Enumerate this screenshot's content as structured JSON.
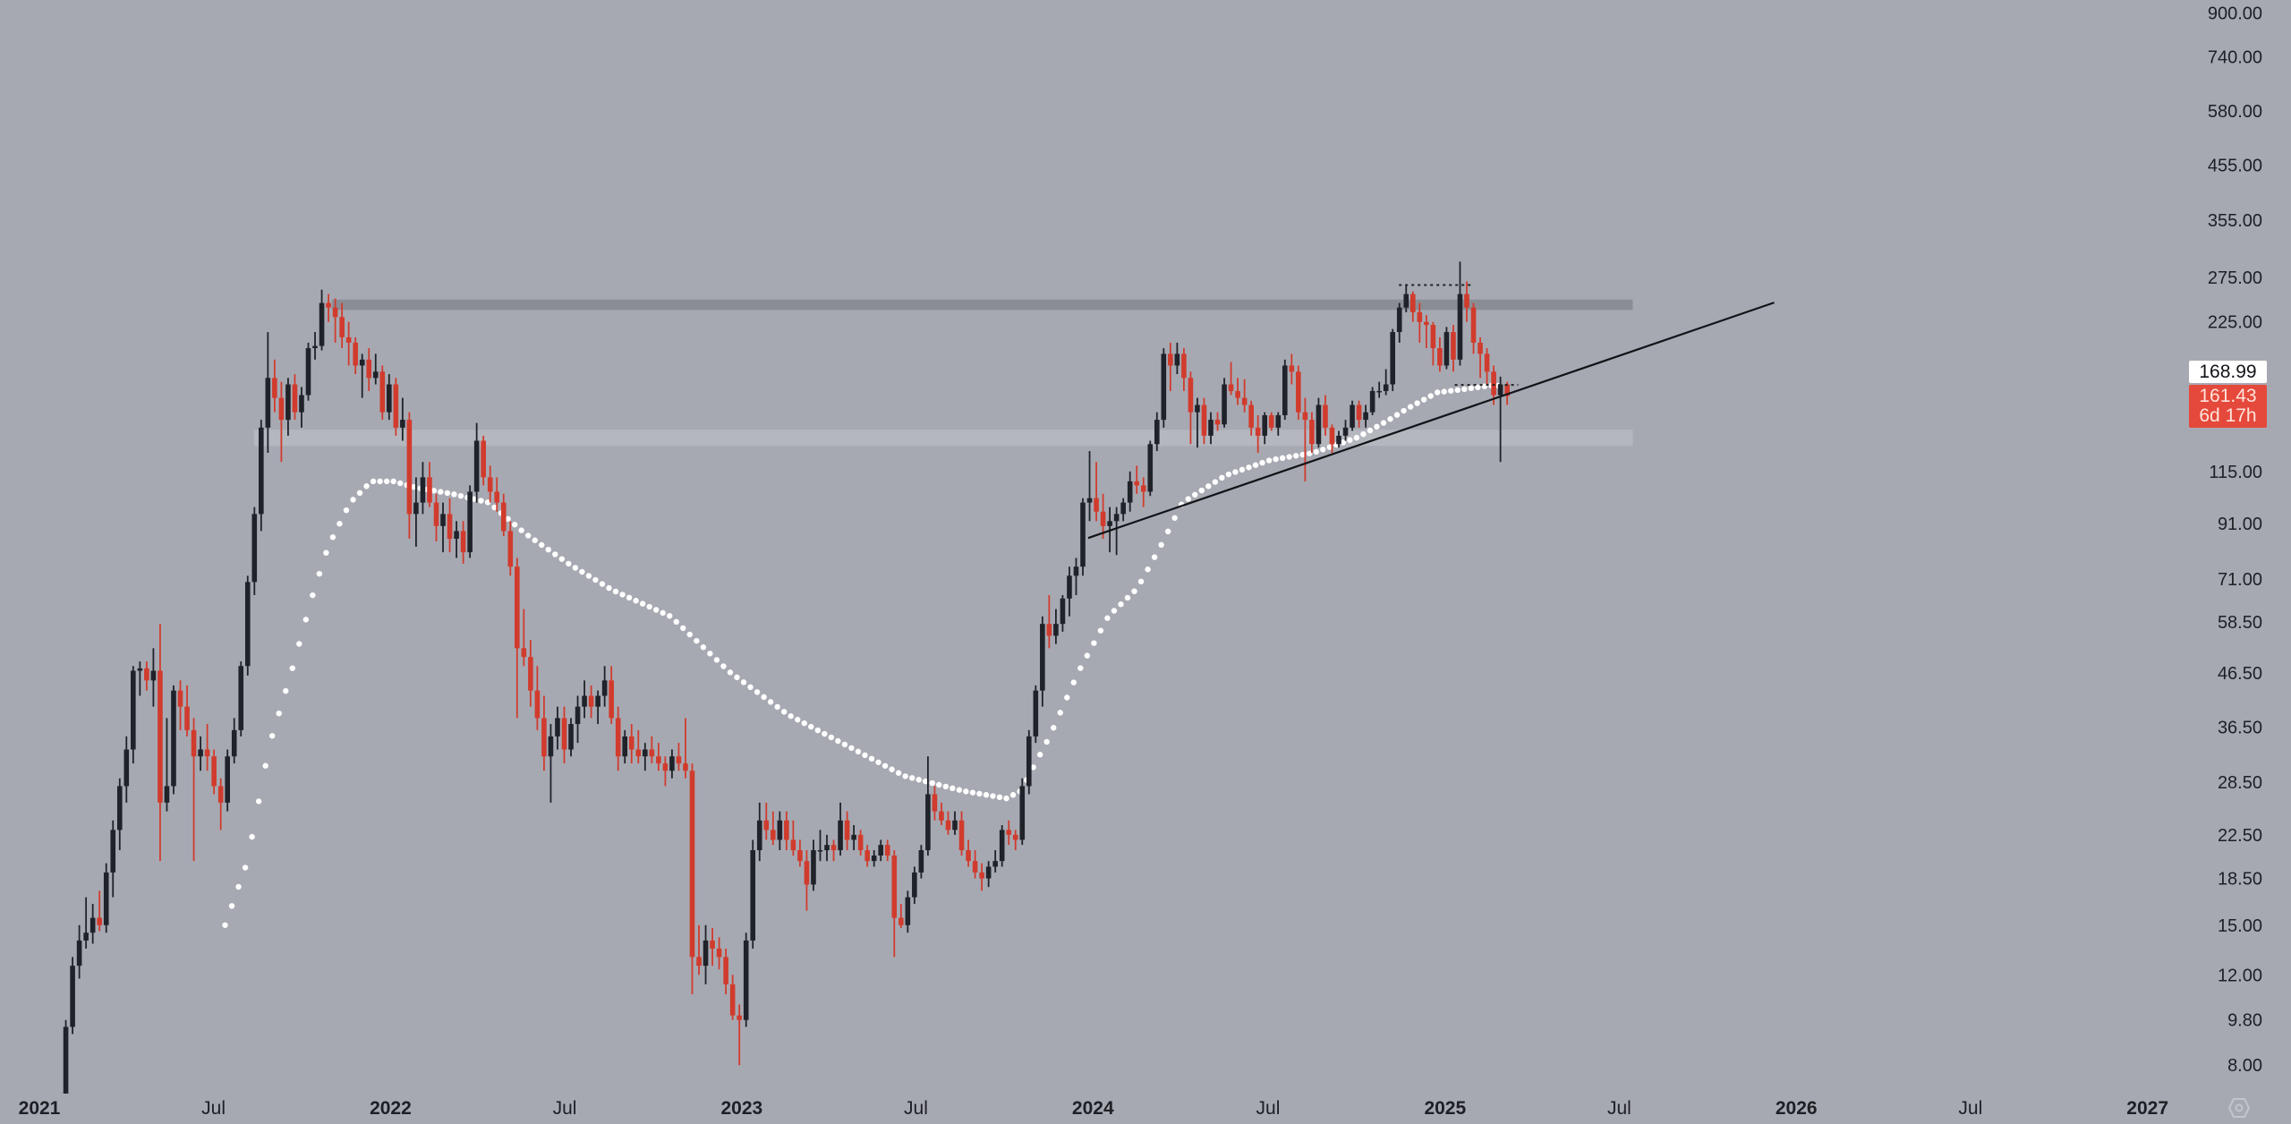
{
  "chart_data": {
    "type": "candlestick",
    "scale": "log",
    "interval": "1W",
    "first_candle": "2021-01-25",
    "ylim": [
      7.2,
      950
    ],
    "price_ticks": [
      "900.00",
      "740.00",
      "580.00",
      "455.00",
      "355.00",
      "275.00",
      "225.00",
      "115.00",
      "91.00",
      "71.00",
      "58.50",
      "46.50",
      "36.50",
      "28.50",
      "22.50",
      "18.50",
      "15.00",
      "12.00",
      "9.80",
      "8.00"
    ],
    "time_ticks": [
      {
        "date": "2021-01-01",
        "label": "2021",
        "year": true
      },
      {
        "date": "2021-07-01",
        "label": "Jul",
        "year": false
      },
      {
        "date": "2022-01-01",
        "label": "2022",
        "year": true
      },
      {
        "date": "2022-07-01",
        "label": "Jul",
        "year": false
      },
      {
        "date": "2023-01-01",
        "label": "2023",
        "year": true
      },
      {
        "date": "2023-07-01",
        "label": "Jul",
        "year": false
      },
      {
        "date": "2024-01-01",
        "label": "2024",
        "year": true
      },
      {
        "date": "2024-07-01",
        "label": "Jul",
        "year": false
      },
      {
        "date": "2025-01-01",
        "label": "2025",
        "year": true
      },
      {
        "date": "2025-07-01",
        "label": "Jul",
        "year": false
      },
      {
        "date": "2026-01-01",
        "label": "2026",
        "year": true
      },
      {
        "date": "2026-07-01",
        "label": "Jul",
        "year": false
      },
      {
        "date": "2027-01-01",
        "label": "2027",
        "year": true
      }
    ],
    "colors": {
      "background": "#a7a9b2",
      "up": "#1f2229",
      "down": "#d13b2d",
      "ma": "#ffffff",
      "trendline": "#111317",
      "resistance_band": "#8b8d94",
      "support_band": "#b5b7bf",
      "last_price": "#e5493b"
    },
    "candles_ohlc": [
      [
        6.8,
        9.8,
        6.5,
        9.5
      ],
      [
        9.5,
        13,
        9.2,
        12.5
      ],
      [
        12.5,
        15,
        11.8,
        14
      ],
      [
        14,
        17,
        13.5,
        14.5
      ],
      [
        14.5,
        16.5,
        13.8,
        15.5
      ],
      [
        15.5,
        17.5,
        14.6,
        15
      ],
      [
        15,
        19.8,
        14.5,
        19
      ],
      [
        19,
        24,
        17,
        23
      ],
      [
        23,
        29,
        21,
        28
      ],
      [
        28,
        35,
        26,
        33
      ],
      [
        33,
        48,
        31,
        47
      ],
      [
        47,
        49,
        42,
        47.5
      ],
      [
        47.5,
        49,
        43,
        45
      ],
      [
        45,
        52,
        40,
        47
      ],
      [
        47,
        58,
        20,
        26
      ],
      [
        26,
        38,
        25,
        28
      ],
      [
        28,
        44,
        27,
        43
      ],
      [
        43,
        45,
        36,
        40
      ],
      [
        40,
        44,
        35,
        36
      ],
      [
        36,
        38,
        20,
        32
      ],
      [
        32,
        35,
        30,
        33
      ],
      [
        33,
        37,
        30,
        32
      ],
      [
        32,
        33,
        27,
        28
      ],
      [
        28,
        29,
        23,
        26
      ],
      [
        26,
        33,
        25,
        32
      ],
      [
        32,
        38,
        31,
        36
      ],
      [
        36,
        49,
        35,
        48
      ],
      [
        48,
        72,
        46,
        70
      ],
      [
        70,
        98,
        66,
        95
      ],
      [
        95,
        145,
        88,
        140
      ],
      [
        140,
        215,
        125,
        175
      ],
      [
        175,
        190,
        150,
        160
      ],
      [
        160,
        172,
        120,
        145
      ],
      [
        145,
        175,
        135,
        170
      ],
      [
        170,
        178,
        145,
        150
      ],
      [
        150,
        168,
        140,
        162
      ],
      [
        162,
        205,
        158,
        200
      ],
      [
        200,
        215,
        190,
        202
      ],
      [
        202,
        260,
        198,
        245
      ],
      [
        245,
        255,
        225,
        240
      ],
      [
        240,
        250,
        205,
        230
      ],
      [
        230,
        245,
        200,
        210
      ],
      [
        210,
        225,
        185,
        205
      ],
      [
        205,
        210,
        178,
        185
      ],
      [
        185,
        195,
        160,
        190
      ],
      [
        190,
        200,
        165,
        175
      ],
      [
        175,
        195,
        170,
        180
      ],
      [
        180,
        185,
        145,
        150
      ],
      [
        150,
        178,
        145,
        170
      ],
      [
        170,
        175,
        135,
        140
      ],
      [
        140,
        160,
        132,
        145
      ],
      [
        145,
        150,
        85,
        95
      ],
      [
        95,
        112,
        82,
        100
      ],
      [
        100,
        120,
        95,
        112
      ],
      [
        112,
        120,
        98,
        100
      ],
      [
        100,
        104,
        84,
        90
      ],
      [
        90,
        100,
        80,
        95
      ],
      [
        95,
        102,
        80,
        85
      ],
      [
        85,
        92,
        78,
        88
      ],
      [
        88,
        92,
        76,
        80
      ],
      [
        80,
        108,
        78,
        105
      ],
      [
        105,
        143,
        100,
        132
      ],
      [
        132,
        135,
        108,
        112
      ],
      [
        112,
        118,
        100,
        105
      ],
      [
        105,
        112,
        96,
        100
      ],
      [
        100,
        104,
        86,
        88
      ],
      [
        88,
        92,
        72,
        75
      ],
      [
        75,
        78,
        38,
        52
      ],
      [
        52,
        62,
        48,
        50
      ],
      [
        50,
        54,
        40,
        43
      ],
      [
        43,
        48,
        36,
        38
      ],
      [
        38,
        42,
        30,
        32
      ],
      [
        32,
        37,
        26,
        35
      ],
      [
        35,
        40,
        33,
        38
      ],
      [
        38,
        40,
        31,
        33
      ],
      [
        33,
        38,
        32,
        37
      ],
      [
        37,
        42,
        34,
        40
      ],
      [
        40,
        45,
        38,
        42
      ],
      [
        42,
        44,
        38,
        40
      ],
      [
        40,
        43,
        37,
        42
      ],
      [
        42,
        48,
        40,
        45
      ],
      [
        45,
        48,
        37,
        38
      ],
      [
        38,
        40,
        30,
        32
      ],
      [
        32,
        36,
        31,
        35
      ],
      [
        35,
        37,
        31,
        33
      ],
      [
        33,
        36,
        31,
        32
      ],
      [
        32,
        34,
        30,
        33
      ],
      [
        33,
        35,
        31,
        32
      ],
      [
        32,
        34,
        30,
        31
      ],
      [
        31,
        32,
        28,
        30
      ],
      [
        30,
        33,
        29,
        32
      ],
      [
        32,
        34,
        30,
        31
      ],
      [
        31,
        38,
        29,
        30
      ],
      [
        30,
        31,
        11,
        13
      ],
      [
        13,
        15,
        12,
        12.5
      ],
      [
        12.5,
        15,
        11.5,
        14
      ],
      [
        14,
        14.8,
        12.5,
        13.5
      ],
      [
        13.5,
        14.2,
        12.3,
        13
      ],
      [
        13,
        13.5,
        11,
        11.5
      ],
      [
        11.5,
        12,
        9.8,
        10
      ],
      [
        10,
        10.5,
        8,
        9.8
      ],
      [
        9.8,
        14.5,
        9.5,
        14
      ],
      [
        14,
        22,
        13.5,
        21
      ],
      [
        21,
        26,
        20,
        24
      ],
      [
        24,
        26,
        22,
        23
      ],
      [
        23,
        25,
        21.5,
        22
      ],
      [
        22,
        25,
        21,
        24
      ],
      [
        24,
        25,
        21,
        22
      ],
      [
        22,
        24,
        20.5,
        21
      ],
      [
        21,
        22,
        19.5,
        20
      ],
      [
        20,
        21,
        16,
        18
      ],
      [
        18,
        22,
        17.5,
        21
      ],
      [
        21,
        23,
        20,
        21
      ],
      [
        21,
        22.5,
        20,
        21.5
      ],
      [
        21.5,
        22,
        20,
        21
      ],
      [
        21,
        26,
        20.5,
        24
      ],
      [
        24,
        25,
        21,
        22
      ],
      [
        22,
        23.5,
        21,
        22.5
      ],
      [
        22.5,
        23,
        20.5,
        21
      ],
      [
        21,
        21.5,
        19.5,
        20
      ],
      [
        20,
        21,
        19.5,
        20.5
      ],
      [
        20.5,
        22,
        20,
        21.5
      ],
      [
        21.5,
        22,
        20,
        20.5
      ],
      [
        20.5,
        21,
        13,
        15.5
      ],
      [
        15.5,
        16.5,
        14.8,
        15
      ],
      [
        15,
        17.5,
        14.5,
        17
      ],
      [
        17,
        19.5,
        16.5,
        19
      ],
      [
        19,
        21.5,
        18.5,
        21
      ],
      [
        21,
        32,
        20.5,
        27
      ],
      [
        27,
        28,
        24,
        25
      ],
      [
        25,
        26,
        23.5,
        24
      ],
      [
        24,
        25,
        22.5,
        23
      ],
      [
        23,
        25,
        22.5,
        24
      ],
      [
        24,
        25,
        20.5,
        21
      ],
      [
        21,
        22,
        19.5,
        20
      ],
      [
        20,
        21,
        18.5,
        19
      ],
      [
        19,
        19.8,
        17.5,
        18.5
      ],
      [
        18.5,
        20,
        17.8,
        19.5
      ],
      [
        19.5,
        21,
        19,
        20
      ],
      [
        20,
        23.5,
        19.5,
        23
      ],
      [
        23,
        24,
        21.5,
        22.5
      ],
      [
        22.5,
        23,
        21,
        22
      ],
      [
        22,
        29,
        21.5,
        28
      ],
      [
        28,
        36,
        27,
        35
      ],
      [
        35,
        44,
        34,
        43
      ],
      [
        43,
        60,
        40,
        58
      ],
      [
        58,
        66,
        52,
        55
      ],
      [
        55,
        62,
        53,
        58
      ],
      [
        58,
        66,
        56,
        65
      ],
      [
        65,
        75,
        60,
        72
      ],
      [
        72,
        78,
        66,
        75
      ],
      [
        75,
        102,
        72,
        100
      ],
      [
        100,
        126,
        92,
        102
      ],
      [
        102,
        120,
        92,
        96
      ],
      [
        96,
        104,
        85,
        90
      ],
      [
        90,
        98,
        80,
        92
      ],
      [
        92,
        98,
        79,
        95
      ],
      [
        95,
        102,
        92,
        100
      ],
      [
        100,
        115,
        96,
        110
      ],
      [
        110,
        118,
        104,
        108
      ],
      [
        108,
        112,
        98,
        105
      ],
      [
        105,
        132,
        103,
        130
      ],
      [
        130,
        150,
        126,
        145
      ],
      [
        145,
        200,
        140,
        195
      ],
      [
        195,
        205,
        165,
        185
      ],
      [
        185,
        205,
        178,
        195
      ],
      [
        195,
        200,
        165,
        175
      ],
      [
        175,
        180,
        130,
        150
      ],
      [
        150,
        160,
        128,
        155
      ],
      [
        155,
        160,
        130,
        135
      ],
      [
        135,
        150,
        130,
        145
      ],
      [
        145,
        150,
        138,
        142
      ],
      [
        142,
        175,
        140,
        170
      ],
      [
        170,
        188,
        162,
        165
      ],
      [
        165,
        175,
        155,
        160
      ],
      [
        160,
        174,
        150,
        155
      ],
      [
        155,
        158,
        135,
        140
      ],
      [
        140,
        148,
        125,
        135
      ],
      [
        135,
        150,
        130,
        148
      ],
      [
        148,
        150,
        138,
        140
      ],
      [
        140,
        150,
        135,
        148
      ],
      [
        148,
        190,
        145,
        185
      ],
      [
        185,
        195,
        170,
        180
      ],
      [
        180,
        185,
        145,
        150
      ],
      [
        150,
        160,
        110,
        145
      ],
      [
        145,
        150,
        125,
        130
      ],
      [
        130,
        160,
        128,
        155
      ],
      [
        155,
        162,
        135,
        140
      ],
      [
        140,
        142,
        125,
        130
      ],
      [
        130,
        138,
        128,
        135
      ],
      [
        135,
        145,
        132,
        140
      ],
      [
        140,
        158,
        138,
        155
      ],
      [
        155,
        158,
        140,
        145
      ],
      [
        145,
        155,
        140,
        150
      ],
      [
        150,
        168,
        148,
        165
      ],
      [
        165,
        172,
        160,
        165
      ],
      [
        165,
        182,
        162,
        170
      ],
      [
        170,
        218,
        165,
        215
      ],
      [
        215,
        245,
        205,
        240
      ],
      [
        240,
        265,
        235,
        255
      ],
      [
        255,
        258,
        225,
        235
      ],
      [
        235,
        245,
        205,
        225
      ],
      [
        225,
        232,
        200,
        222
      ],
      [
        222,
        225,
        185,
        200
      ],
      [
        200,
        210,
        180,
        185
      ],
      [
        185,
        220,
        182,
        215
      ],
      [
        215,
        222,
        180,
        190
      ],
      [
        190,
        295,
        185,
        255
      ],
      [
        255,
        270,
        225,
        240
      ],
      [
        240,
        245,
        195,
        205
      ],
      [
        205,
        210,
        175,
        195
      ],
      [
        195,
        200,
        170,
        180
      ],
      [
        180,
        185,
        155,
        162
      ],
      [
        162,
        176,
        120,
        170
      ],
      [
        170,
        172,
        155,
        161.43
      ]
    ],
    "moving_average_points": [
      [
        "2021-07-13",
        15
      ],
      [
        "2021-08-05",
        19.9
      ],
      [
        "2021-08-28",
        33.6
      ],
      [
        "2021-09-20",
        46.8
      ],
      [
        "2021-10-13",
        67
      ],
      [
        "2021-10-28",
        82
      ],
      [
        "2021-11-20",
        100
      ],
      [
        "2021-12-12",
        110
      ],
      [
        "2022-01-04",
        110
      ],
      [
        "2022-01-27",
        107
      ],
      [
        "2022-03-06",
        104
      ],
      [
        "2022-04-13",
        100
      ],
      [
        "2022-05-21",
        87
      ],
      [
        "2022-07-05",
        76
      ],
      [
        "2022-08-19",
        67.6
      ],
      [
        "2022-10-19",
        60
      ],
      [
        "2022-12-19",
        46.8
      ],
      [
        "2023-02-18",
        38.6
      ],
      [
        "2023-04-20",
        33.6
      ],
      [
        "2023-06-19",
        29.3
      ],
      [
        "2023-08-19",
        27.4
      ],
      [
        "2023-10-03",
        26.5
      ],
      [
        "2023-10-18",
        27.4
      ],
      [
        "2023-11-17",
        35
      ],
      [
        "2023-12-17",
        46.8
      ],
      [
        "2024-01-17",
        60
      ],
      [
        "2024-02-16",
        68
      ],
      [
        "2024-03-11",
        82
      ],
      [
        "2024-04-03",
        100
      ],
      [
        "2024-05-18",
        113
      ],
      [
        "2024-07-03",
        121
      ],
      [
        "2024-08-17",
        125
      ],
      [
        "2024-10-02",
        134
      ],
      [
        "2024-11-01",
        144
      ],
      [
        "2024-11-24",
        153
      ],
      [
        "2024-12-24",
        164
      ],
      [
        "2025-01-17",
        166
      ],
      [
        "2025-02-16",
        169
      ],
      [
        "2025-03-03",
        168.99
      ]
    ],
    "bands": [
      {
        "from": "2021-11-01",
        "to": "2025-07-15",
        "low": 237.5,
        "high": 248.8,
        "kind": "resistance_band"
      },
      {
        "from": "2021-08-12",
        "to": "2025-07-15",
        "low": 128.9,
        "high": 138.7,
        "kind": "support_band"
      }
    ],
    "trendline": {
      "from": [
        "2023-12-27",
        85.3
      ],
      "to": [
        "2025-12-09",
        245.4
      ]
    },
    "dotted_levels": [
      {
        "from": "2024-11-14",
        "to": "2025-01-29",
        "price": 265.6
      },
      {
        "from": "2025-01-11",
        "to": "2025-03-18",
        "price": 169.6
      }
    ],
    "ma_value_label": "168.99",
    "last_price_label": "161.43",
    "countdown_label": "6d 17h"
  },
  "ui": {
    "settings_icon": "gear-icon"
  }
}
